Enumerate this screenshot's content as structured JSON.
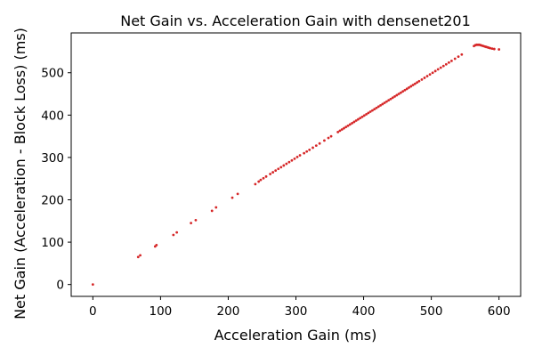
{
  "chart_data": {
    "type": "scatter",
    "title": "Net Gain vs. Acceleration Gain with densenet201",
    "xlabel": "Acceleration Gain (ms)",
    "ylabel": "Net Gain (Acceleration - Block Loss) (ms)",
    "xlim": [
      -32,
      632
    ],
    "ylim": [
      -28,
      594
    ],
    "xticks": [
      0,
      100,
      200,
      300,
      400,
      500,
      600
    ],
    "yticks": [
      0,
      100,
      200,
      300,
      400,
      500
    ],
    "grid": false,
    "legend": "none",
    "marker_color": "#d62728",
    "series": [
      {
        "x": [
          0,
          67,
          70,
          92,
          94,
          119,
          124,
          145,
          152,
          176,
          182,
          206,
          214,
          240,
          245,
          248,
          252,
          256,
          262,
          266,
          270,
          274,
          278,
          282,
          286,
          290,
          294,
          298,
          302,
          306,
          312,
          316,
          320,
          325,
          330,
          335,
          342,
          348,
          352,
          362,
          365,
          368,
          371,
          374,
          377,
          380,
          383,
          386,
          389,
          392,
          395,
          398,
          401,
          404,
          407,
          410,
          413,
          416,
          419,
          422,
          425,
          428,
          431,
          434,
          437,
          440,
          443,
          446,
          449,
          452,
          455,
          458,
          461,
          464,
          467,
          470,
          473,
          476,
          479,
          482,
          486,
          490,
          494,
          498,
          502,
          506,
          510,
          514,
          518,
          522,
          526,
          530,
          535,
          540,
          545,
          563,
          565,
          567,
          569,
          571,
          573,
          575,
          577,
          579,
          581,
          583,
          585,
          587,
          590,
          593,
          600
        ],
        "y": [
          0,
          65,
          69,
          90,
          93,
          117,
          123,
          145,
          152,
          174,
          182,
          205,
          214,
          237,
          243,
          247,
          251,
          255,
          261,
          265,
          269,
          273,
          277,
          281,
          285,
          289,
          293,
          297,
          301,
          305,
          310,
          314,
          318,
          323,
          328,
          333,
          340,
          346,
          350,
          360,
          363,
          366,
          369,
          372,
          375,
          378,
          381,
          384,
          387,
          390,
          393,
          396,
          399,
          402,
          405,
          408,
          411,
          414,
          417,
          420,
          423,
          426,
          429,
          432,
          435,
          438,
          441,
          444,
          447,
          450,
          453,
          456,
          459,
          462,
          465,
          468,
          471,
          474,
          477,
          480,
          484,
          488,
          492,
          496,
          500,
          504,
          508,
          512,
          516,
          520,
          524,
          528,
          533,
          538,
          543,
          563,
          565,
          566,
          566,
          566,
          565,
          564,
          563,
          562,
          561,
          560,
          559,
          558,
          557,
          556,
          555
        ]
      }
    ]
  }
}
